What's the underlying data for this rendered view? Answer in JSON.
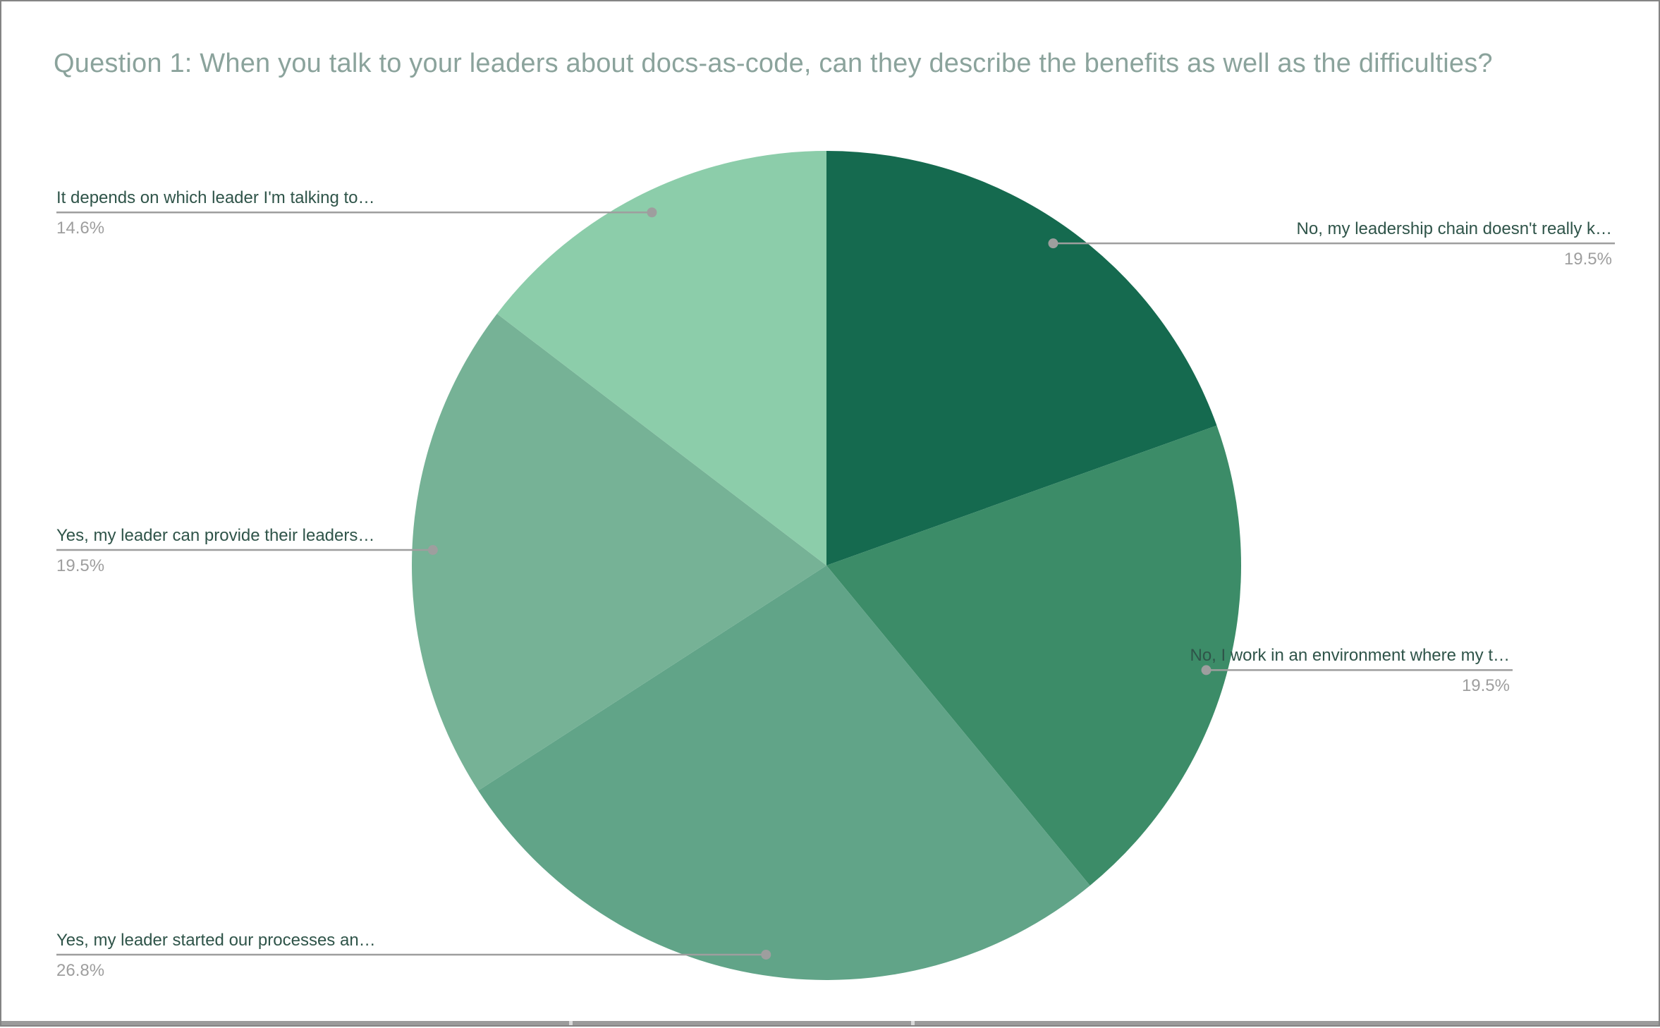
{
  "page": {
    "title": "Question 1: When you talk to your leaders about docs-as-code, can they describe the benefits as well as the difficulties?"
  },
  "chart_data": {
    "type": "pie",
    "title": "Question 1: When you talk to your leaders about docs-as-code, can they describe the benefits as well as the difficulties?",
    "start_angle_deg": 0,
    "direction": "clockwise",
    "legend_position": "outside-labels-with-leader-lines",
    "unit": "%",
    "slices": [
      {
        "label": "No, my leadership chain doesn't really k…",
        "value": 19.5,
        "pct_label": "19.5%",
        "color": "#156A4F"
      },
      {
        "label": "No, I work in an environment where my t…",
        "value": 19.5,
        "pct_label": "19.5%",
        "color": "#3C8C68"
      },
      {
        "label": "Yes, my leader started our processes an…",
        "value": 26.8,
        "pct_label": "26.8%",
        "color": "#61A488"
      },
      {
        "label": "Yes, my leader can provide their leaders…",
        "value": 19.5,
        "pct_label": "19.5%",
        "color": "#76B296"
      },
      {
        "label": "It depends on which leader I'm talking to…",
        "value": 14.6,
        "pct_label": "14.6%",
        "color": "#8CCDAA"
      }
    ],
    "colors": {
      "label_text": "#2F5449",
      "percent_text": "#9E9E9E",
      "leader_line": "#9E9E9E",
      "title_text": "#8BA39C"
    }
  },
  "footer": {
    "divider_color": "#9B9B9B"
  }
}
